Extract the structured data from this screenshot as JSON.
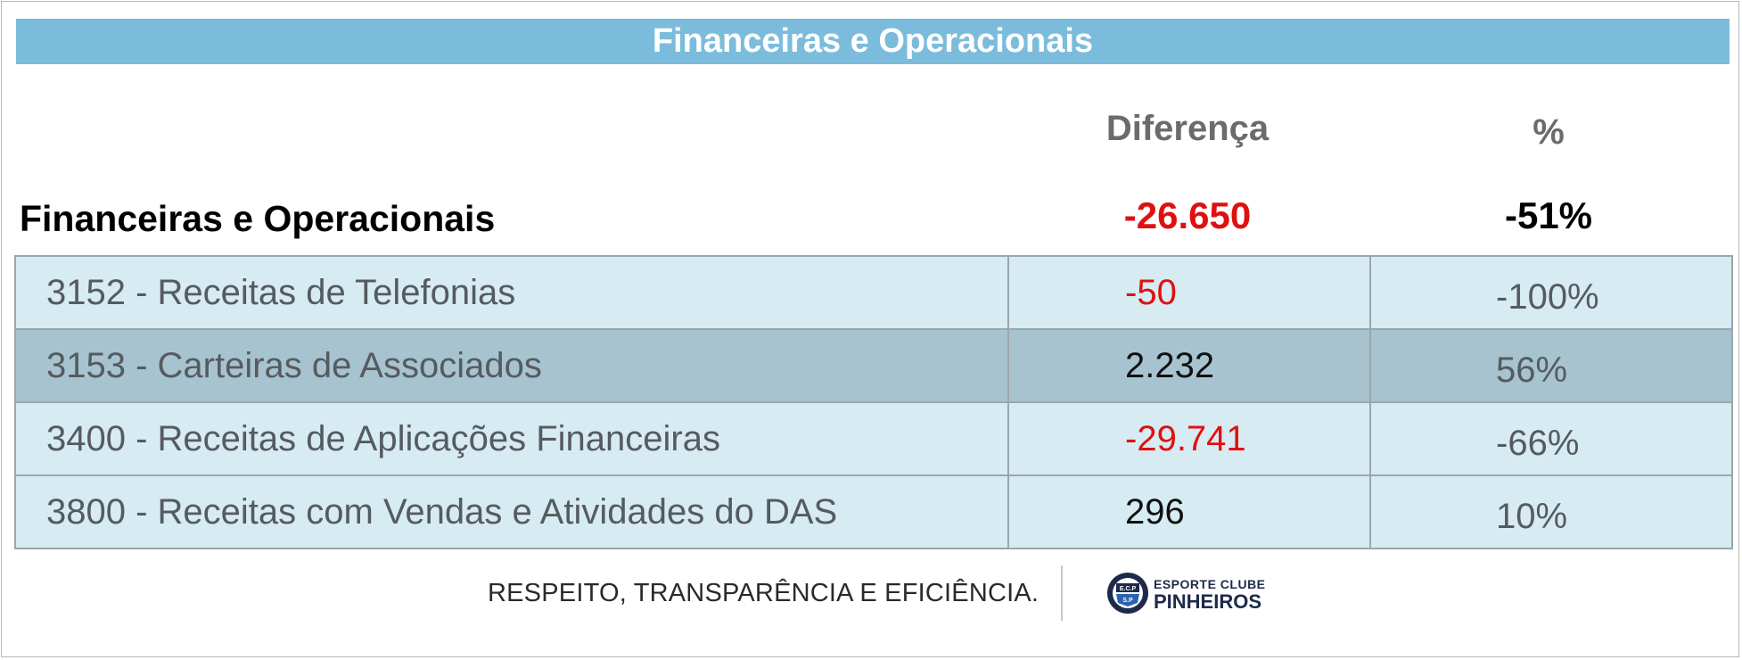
{
  "banner": {
    "title": "Financeiras e Operacionais"
  },
  "columns": {
    "diff_header": "Diferença",
    "pct_header": "%"
  },
  "summary": {
    "label": "Financeiras e Operacionais",
    "diff": "-26.650",
    "pct": "-51%"
  },
  "rows": [
    {
      "label": "3152 - Receitas de Telefonias",
      "diff": "-50",
      "pct": "-100%"
    },
    {
      "label": "3153 - Carteiras de Associados",
      "diff": "2.232",
      "pct": "56%"
    },
    {
      "label": "3400 - Receitas de Aplicações Financeiras",
      "diff": "-29.741",
      "pct": "-66%"
    },
    {
      "label": "3800 - Receitas com Vendas e Atividades do DAS",
      "diff": "296",
      "pct": "10%"
    }
  ],
  "footer": {
    "slogan": "RESPEITO, TRANSPARÊNCIA E EFICIÊNCIA.",
    "logo_line1": "ESPORTE CLUBE",
    "logo_line2": "PINHEIROS",
    "logo_badge_top": "E.C.P",
    "logo_badge_bottom": "S.P"
  },
  "colors": {
    "banner": "#7bbcdc",
    "row_light": "#d7ebf2",
    "row_dark": "#a7c3d0",
    "negative": "#e01010",
    "brand_navy": "#1d2a4a"
  }
}
